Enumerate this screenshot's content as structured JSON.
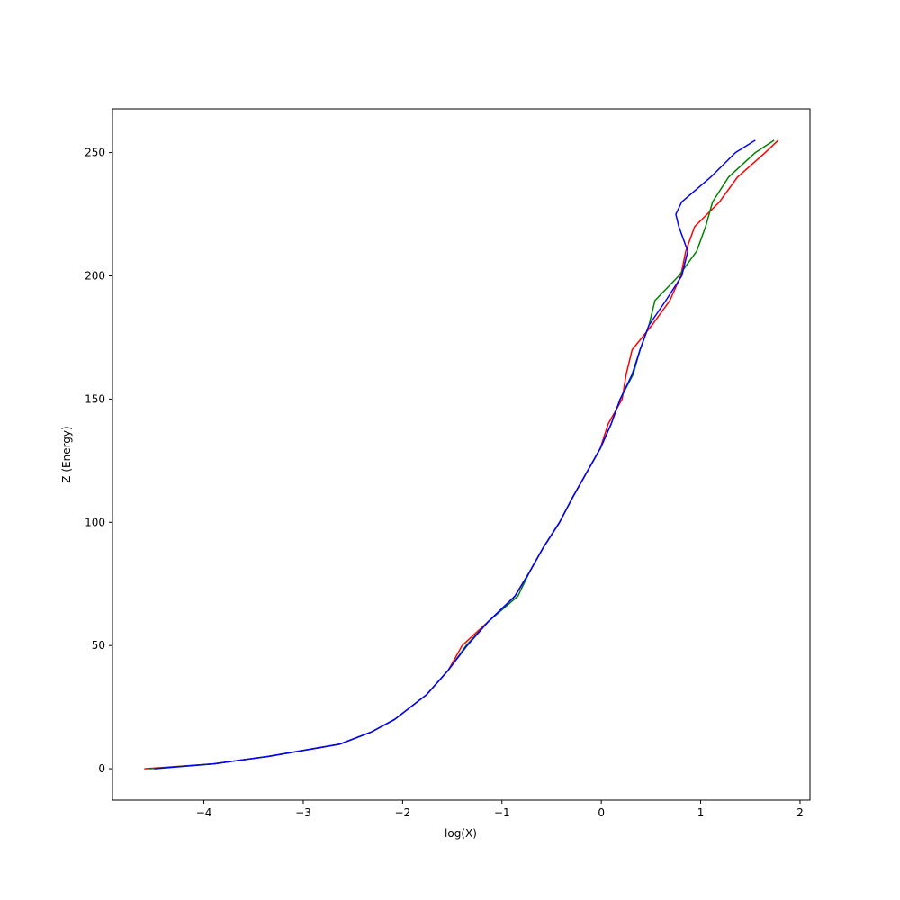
{
  "chart_data": {
    "type": "line",
    "x_label": "log(X)",
    "y_label": "Z (Energy)",
    "xlim": [
      -4.92,
      2.1
    ],
    "ylim": [
      -12.75,
      267.75
    ],
    "xticks": [
      {
        "value": -4,
        "label": "−4"
      },
      {
        "value": -3,
        "label": "−3"
      },
      {
        "value": -2,
        "label": "−2"
      },
      {
        "value": -1,
        "label": "−1"
      },
      0,
      1,
      2
    ],
    "yticks": [
      0,
      50,
      100,
      150,
      200,
      250
    ],
    "grid": false,
    "series": [
      {
        "color": "#ff0000",
        "x": [
          -4.6,
          -3.9,
          -3.35,
          -2.63,
          -2.31,
          -2.08,
          -1.76,
          -1.54,
          -1.4,
          -1.13,
          -0.87,
          -0.72,
          -0.58,
          -0.42,
          -0.29,
          -0.15,
          -0.01,
          0.07,
          0.21,
          0.25,
          0.31,
          0.51,
          0.69,
          0.8,
          0.85,
          0.94,
          1.19,
          1.37,
          1.65,
          1.78
        ],
        "values": [
          0,
          2,
          5,
          10,
          15,
          20,
          30,
          40,
          50,
          60,
          70,
          80,
          90,
          100,
          110,
          120,
          130,
          140,
          150,
          160,
          170,
          180,
          190,
          200,
          210,
          220,
          230,
          240,
          250,
          255
        ]
      },
      {
        "color": "#008000",
        "x": [
          -4.55,
          -3.9,
          -3.35,
          -2.63,
          -2.31,
          -2.08,
          -1.76,
          -1.54,
          -1.36,
          -1.13,
          -0.84,
          -0.72,
          -0.58,
          -0.42,
          -0.29,
          -0.15,
          -0.01,
          0.1,
          0.19,
          0.32,
          0.39,
          0.48,
          0.54,
          0.78,
          0.96,
          1.05,
          1.12,
          1.28,
          1.55,
          1.74
        ],
        "values": [
          0,
          2,
          5,
          10,
          15,
          20,
          30,
          40,
          50,
          60,
          70,
          80,
          90,
          100,
          110,
          120,
          130,
          140,
          150,
          160,
          170,
          180,
          190,
          200,
          210,
          220,
          230,
          240,
          250,
          255
        ]
      },
      {
        "color": "#0000ff",
        "x": [
          -4.5,
          -3.9,
          -3.35,
          -2.63,
          -2.31,
          -2.08,
          -1.76,
          -1.54,
          -1.35,
          -1.13,
          -0.87,
          -0.72,
          -0.58,
          -0.42,
          -0.29,
          -0.15,
          -0.01,
          0.1,
          0.19,
          0.31,
          0.39,
          0.48,
          0.65,
          0.81,
          0.87,
          0.78,
          0.75,
          0.81,
          1.1,
          1.35,
          1.55
        ],
        "values": [
          0,
          2,
          5,
          10,
          15,
          20,
          30,
          40,
          50,
          60,
          70,
          80,
          90,
          100,
          110,
          120,
          130,
          140,
          150,
          160,
          170,
          180,
          190,
          200,
          210,
          220,
          225,
          230,
          240,
          250,
          255
        ]
      }
    ]
  }
}
